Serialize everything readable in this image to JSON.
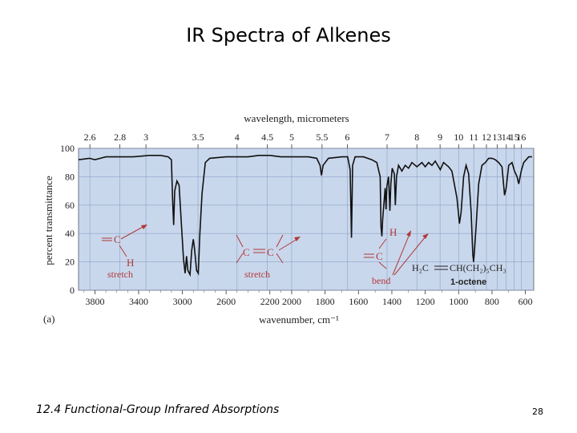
{
  "slide": {
    "title": "IR Spectra of Alkenes",
    "footer": "12.4 Functional-Group Infrared Absorptions",
    "page_number": "28"
  },
  "chart_data": {
    "type": "line",
    "panel_label": "(a)",
    "xlabel": "wavenumber, cm⁻¹",
    "top_axis_label": "wavelength, micrometers",
    "ylabel": "percent transmittance",
    "compound": "1-octene",
    "x_axis": "wavenumber",
    "xlim": [
      3950,
      550
    ],
    "ylim": [
      0,
      100
    ],
    "y_ticks": [
      0,
      20,
      40,
      60,
      80,
      100
    ],
    "x_tick_values": [
      3800,
      3400,
      3000,
      2600,
      2200,
      2000,
      1800,
      1600,
      1400,
      1200,
      1000,
      800,
      600
    ],
    "x_tick_labels": [
      "3800",
      "3400",
      "3000",
      "2600",
      "2200",
      "2000",
      "1800",
      "1600",
      "1400",
      "1200",
      "1000",
      "800",
      "600"
    ],
    "top_ticks": [
      {
        "label": "2.6",
        "um": 2.6
      },
      {
        "label": "2.8",
        "um": 2.8
      },
      {
        "label": "3",
        "um": 3
      },
      {
        "label": "3.5",
        "um": 3.5
      },
      {
        "label": "4",
        "um": 4
      },
      {
        "label": "4.5",
        "um": 4.5
      },
      {
        "label": "5",
        "um": 5
      },
      {
        "label": "5.5",
        "um": 5.5
      },
      {
        "label": "6",
        "um": 6
      },
      {
        "label": "7",
        "um": 7
      },
      {
        "label": "8",
        "um": 8
      },
      {
        "label": "9",
        "um": 9
      },
      {
        "label": "10",
        "um": 10
      },
      {
        "label": "11",
        "um": 11
      },
      {
        "label": "12",
        "um": 12
      },
      {
        "label": "13",
        "um": 13
      },
      {
        "label": "14",
        "um": 14
      },
      {
        "label": "15",
        "um": 15
      },
      {
        "label": "16",
        "um": 16
      }
    ],
    "series": [
      {
        "points": [
          [
            3950,
            92
          ],
          [
            3850,
            93
          ],
          [
            3800,
            92
          ],
          [
            3700,
            94
          ],
          [
            3600,
            94
          ],
          [
            3450,
            94
          ],
          [
            3300,
            95
          ],
          [
            3200,
            95
          ],
          [
            3130,
            94
          ],
          [
            3100,
            92
          ],
          [
            3090,
            65
          ],
          [
            3080,
            46
          ],
          [
            3070,
            70
          ],
          [
            3050,
            77
          ],
          [
            3030,
            74
          ],
          [
            3010,
            48
          ],
          [
            2990,
            22
          ],
          [
            2975,
            12
          ],
          [
            2962,
            24
          ],
          [
            2950,
            14
          ],
          [
            2930,
            11
          ],
          [
            2915,
            28
          ],
          [
            2900,
            36
          ],
          [
            2890,
            30
          ],
          [
            2870,
            14
          ],
          [
            2855,
            12
          ],
          [
            2840,
            40
          ],
          [
            2820,
            68
          ],
          [
            2790,
            90
          ],
          [
            2750,
            93
          ],
          [
            2600,
            94
          ],
          [
            2500,
            94
          ],
          [
            2400,
            94
          ],
          [
            2300,
            95
          ],
          [
            2200,
            95
          ],
          [
            2100,
            94
          ],
          [
            2000,
            94
          ],
          [
            1900,
            94
          ],
          [
            1850,
            93
          ],
          [
            1830,
            88
          ],
          [
            1822,
            81
          ],
          [
            1812,
            88
          ],
          [
            1780,
            93
          ],
          [
            1700,
            94
          ],
          [
            1665,
            94
          ],
          [
            1650,
            85
          ],
          [
            1642,
            37
          ],
          [
            1635,
            88
          ],
          [
            1620,
            94
          ],
          [
            1570,
            94
          ],
          [
            1520,
            92
          ],
          [
            1490,
            90
          ],
          [
            1470,
            80
          ],
          [
            1465,
            45
          ],
          [
            1460,
            38
          ],
          [
            1455,
            50
          ],
          [
            1440,
            72
          ],
          [
            1435,
            57
          ],
          [
            1430,
            73
          ],
          [
            1420,
            80
          ],
          [
            1415,
            67
          ],
          [
            1412,
            56
          ],
          [
            1406,
            75
          ],
          [
            1398,
            86
          ],
          [
            1385,
            82
          ],
          [
            1379,
            60
          ],
          [
            1372,
            80
          ],
          [
            1360,
            88
          ],
          [
            1340,
            84
          ],
          [
            1320,
            88
          ],
          [
            1300,
            86
          ],
          [
            1280,
            90
          ],
          [
            1250,
            87
          ],
          [
            1220,
            90
          ],
          [
            1200,
            87
          ],
          [
            1180,
            90
          ],
          [
            1160,
            88
          ],
          [
            1140,
            91
          ],
          [
            1110,
            85
          ],
          [
            1090,
            90
          ],
          [
            1060,
            87
          ],
          [
            1040,
            84
          ],
          [
            1010,
            65
          ],
          [
            995,
            47
          ],
          [
            985,
            55
          ],
          [
            970,
            80
          ],
          [
            955,
            88
          ],
          [
            940,
            82
          ],
          [
            925,
            55
          ],
          [
            915,
            25
          ],
          [
            910,
            20
          ],
          [
            905,
            28
          ],
          [
            895,
            45
          ],
          [
            880,
            75
          ],
          [
            860,
            88
          ],
          [
            840,
            90
          ],
          [
            820,
            93
          ],
          [
            800,
            93
          ],
          [
            780,
            92
          ],
          [
            760,
            90
          ],
          [
            740,
            87
          ],
          [
            725,
            67
          ],
          [
            715,
            72
          ],
          [
            700,
            88
          ],
          [
            680,
            90
          ],
          [
            665,
            84
          ],
          [
            650,
            80
          ],
          [
            640,
            75
          ],
          [
            625,
            84
          ],
          [
            610,
            90
          ],
          [
            580,
            94
          ],
          [
            560,
            94
          ]
        ]
      }
    ],
    "annotations": [
      {
        "id": "ch_stretch",
        "atom1": "C",
        "atom2": "H",
        "label": "stretch"
      },
      {
        "id": "cc_stretch",
        "atom1": "C",
        "atom2": "C",
        "label": "stretch"
      },
      {
        "id": "ch_bend",
        "atom1": "C",
        "atom2": "H",
        "label": "bend"
      }
    ],
    "molecule": {
      "left": "H₂C",
      "right": "CH(CH₂)₅CH₃"
    },
    "colors": {
      "plot_bg": "#c9d7ec",
      "grid": "#8aa2c6",
      "annotation": "#b03a3a",
      "line": "#111111"
    }
  }
}
